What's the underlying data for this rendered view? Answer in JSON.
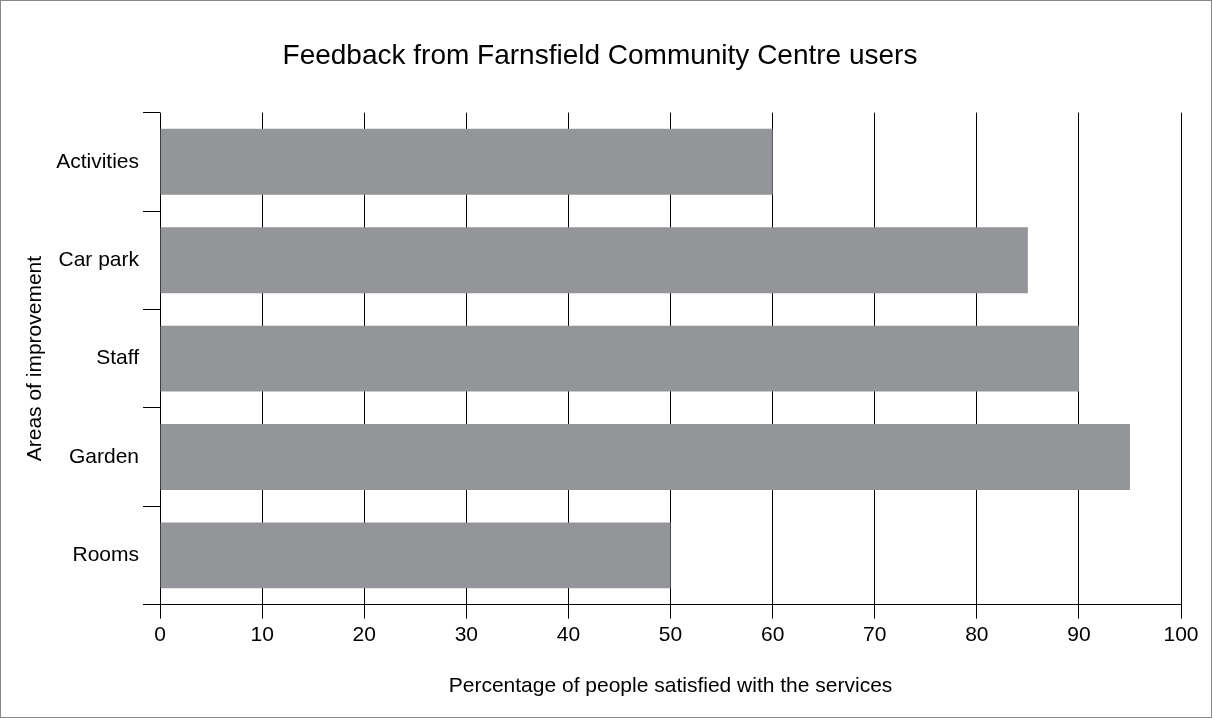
{
  "chart_data": {
    "type": "bar",
    "orientation": "horizontal",
    "title": "Feedback from Farnsfield Community Centre users",
    "xlabel": "Percentage of people satisfied with the services",
    "ylabel": "Areas of improvement",
    "categories": [
      "Activities",
      "Car park",
      "Staff",
      "Garden",
      "Rooms"
    ],
    "values": [
      60,
      85,
      90,
      95,
      50
    ],
    "color": "#939598",
    "xlim": [
      0,
      100
    ],
    "xticks": [
      0,
      10,
      20,
      30,
      40,
      50,
      60,
      70,
      80,
      90,
      100
    ],
    "grid": "x",
    "legend": false
  }
}
